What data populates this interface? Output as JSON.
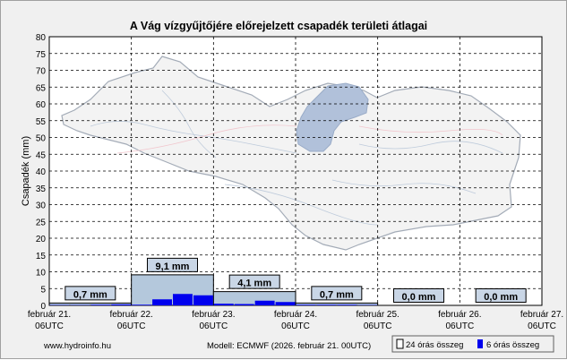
{
  "chart_data": {
    "type": "bar",
    "title": "A Vág vízgyűjtőjére előrejelzett csapadék területi átlagai",
    "ylabel": "Csapadék (mm)",
    "xlabel": "",
    "ylim": [
      0,
      80
    ],
    "y_ticks": [
      0,
      5,
      10,
      15,
      20,
      25,
      30,
      35,
      40,
      45,
      50,
      55,
      60,
      65,
      70,
      75,
      80
    ],
    "grid": true,
    "x_ticks": [
      {
        "date": "február 21.",
        "time": "06UTC"
      },
      {
        "date": "február 22.",
        "time": "06UTC"
      },
      {
        "date": "február 23.",
        "time": "06UTC"
      },
      {
        "date": "február 24.",
        "time": "06UTC"
      },
      {
        "date": "február 25.",
        "time": "06UTC"
      },
      {
        "date": "február 26.",
        "time": "06UTC"
      },
      {
        "date": "február 27.",
        "time": "06UTC"
      }
    ],
    "series": [
      {
        "name": "24 órás összeg",
        "color": "#b4c8dc",
        "values": [
          0.7,
          9.1,
          4.1,
          0.7,
          0.0,
          0.0
        ],
        "labels": [
          "0,7 mm",
          "9,1 mm",
          "4,1 mm",
          "0,7 mm",
          "0,0 mm",
          "0,0 mm"
        ]
      },
      {
        "name": "6 órás összeg",
        "color": "#0000ee",
        "values": [
          0.1,
          0.1,
          0.2,
          0.3,
          0.2,
          1.8,
          3.4,
          3.0,
          0.5,
          0.4,
          1.4,
          1.0,
          0.2,
          0.2,
          0.2,
          0.1,
          0,
          0,
          0,
          0,
          0,
          0,
          0,
          0
        ]
      }
    ],
    "legend_position": "bottom-right",
    "background_image": "map of the Vág river basin with highlighted lake"
  },
  "footer": {
    "website": "www.hydroinfo.hu",
    "model": "Modell: ECMWF (2026. február 21. 00UTC)"
  }
}
